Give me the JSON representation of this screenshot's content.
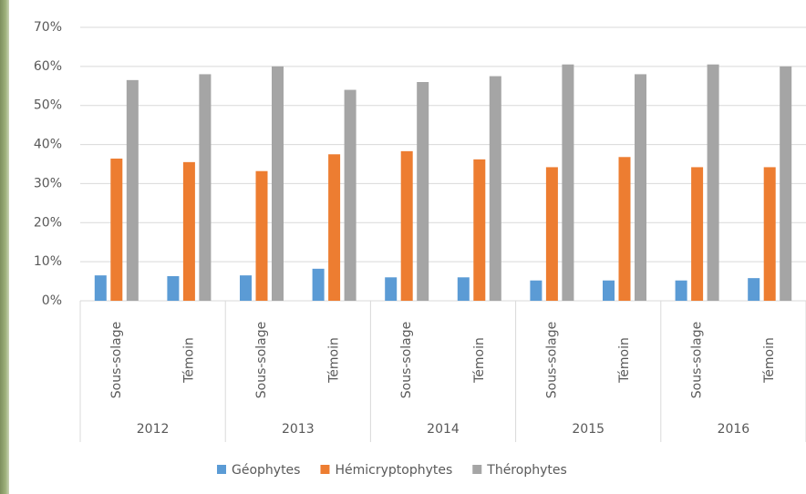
{
  "chart_data": {
    "type": "bar",
    "categories": [
      "Sous-solage",
      "Témoin",
      "Sous-solage",
      "Témoin",
      "Sous-solage",
      "Témoin",
      "Sous-solage",
      "Témoin",
      "Sous-solage",
      "Témoin"
    ],
    "groups": [
      "2012",
      "2013",
      "2014",
      "2015",
      "2016"
    ],
    "series": [
      {
        "name": "Géophytes",
        "color": "#5b9bd5",
        "values": [
          6.5,
          6.3,
          6.5,
          8.2,
          6,
          6,
          5.2,
          5.2,
          5.2,
          5.8
        ]
      },
      {
        "name": "Hémicryptophytes",
        "color": "#ed7d31",
        "values": [
          36.4,
          35.5,
          33.2,
          37.5,
          38.3,
          36.2,
          34.2,
          36.8,
          34.2,
          34.2
        ]
      },
      {
        "name": "Thérophytes",
        "color": "#a5a5a5",
        "values": [
          56.5,
          58,
          60,
          54,
          56,
          57.5,
          60.5,
          58,
          60.5,
          60
        ]
      }
    ],
    "ylim": [
      0,
      70
    ],
    "yticks": [
      {
        "value": 0,
        "label": "0%"
      },
      {
        "value": 10,
        "label": "10%"
      },
      {
        "value": 20,
        "label": "20%"
      },
      {
        "value": 30,
        "label": "30%"
      },
      {
        "value": 40,
        "label": "40%"
      },
      {
        "value": 50,
        "label": "50%"
      },
      {
        "value": 60,
        "label": "60%"
      },
      {
        "value": 70,
        "label": "70%"
      }
    ],
    "grid": true,
    "legend": "bottom"
  }
}
